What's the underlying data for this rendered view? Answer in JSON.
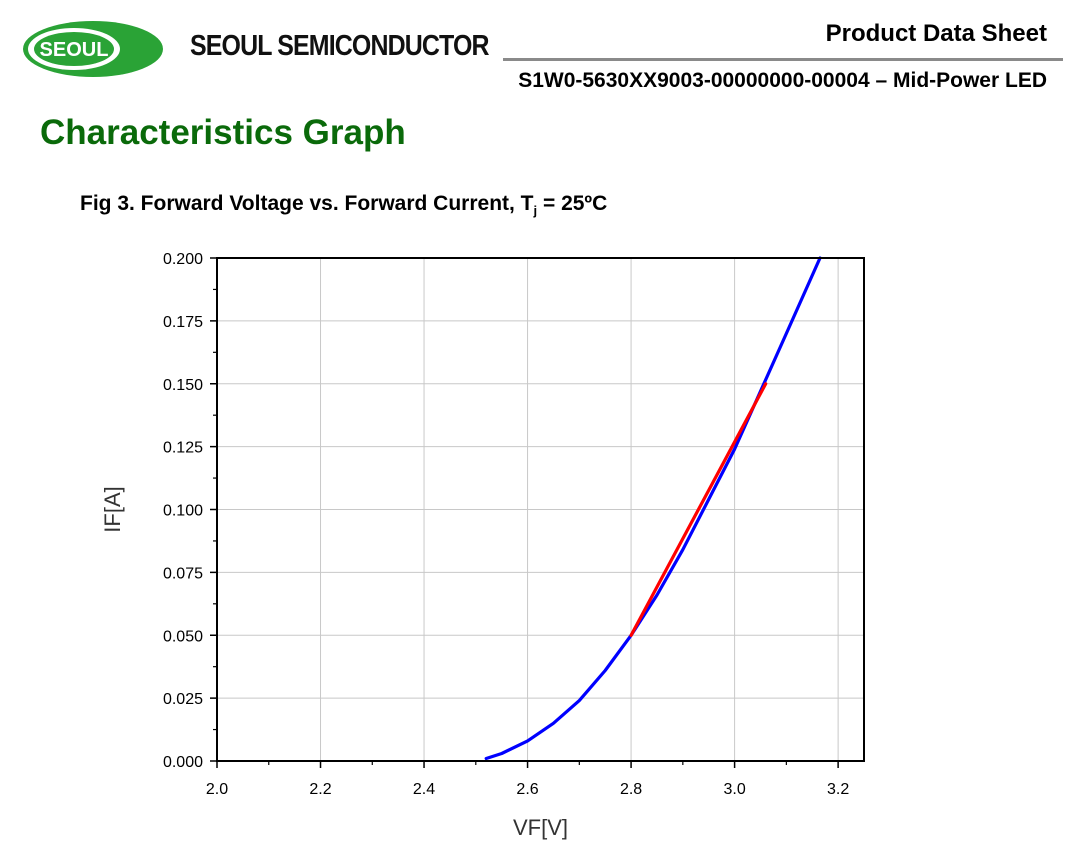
{
  "header": {
    "logo_text": "SEOUL",
    "brand_name": "SEOUL SEMICONDUCTOR",
    "doc_type": "Product Data Sheet",
    "part_number": "S1W0-5630XX9003-00000000-00004 – Mid-Power LED"
  },
  "colors": {
    "section_title": "#0a6a0a",
    "logo_green": "#2aa336",
    "curve_blue": "#0000ff",
    "fit_red": "#ff0000"
  },
  "section_title": "Characteristics Graph",
  "figure": {
    "caption_prefix": "Fig 3. Forward Voltage vs. Forward Current, T",
    "caption_sub": "j",
    "caption_suffix": " = 25ºC"
  },
  "chart_data": {
    "type": "line",
    "title": "",
    "xlabel": "VF[V]",
    "ylabel": "IF[A]",
    "xlim": [
      2.0,
      3.25
    ],
    "ylim": [
      0.0,
      0.2
    ],
    "xticks": [
      "2.0",
      "2.2",
      "2.4",
      "2.6",
      "2.8",
      "3.0",
      "3.2"
    ],
    "yticks": [
      "0.000",
      "0.025",
      "0.050",
      "0.075",
      "0.100",
      "0.125",
      "0.150",
      "0.175",
      "0.200"
    ],
    "grid": true,
    "series": [
      {
        "color": "#0000ff",
        "x": [
          2.52,
          2.55,
          2.6,
          2.65,
          2.7,
          2.75,
          2.8,
          2.85,
          2.9,
          2.95,
          3.0,
          3.05,
          3.1,
          3.165
        ],
        "y": [
          0.001,
          0.003,
          0.008,
          0.015,
          0.024,
          0.036,
          0.05,
          0.066,
          0.084,
          0.104,
          0.124,
          0.147,
          0.17,
          0.2
        ]
      },
      {
        "color": "#ff0000",
        "x": [
          2.8,
          3.06
        ],
        "y": [
          0.05,
          0.15
        ]
      }
    ]
  }
}
